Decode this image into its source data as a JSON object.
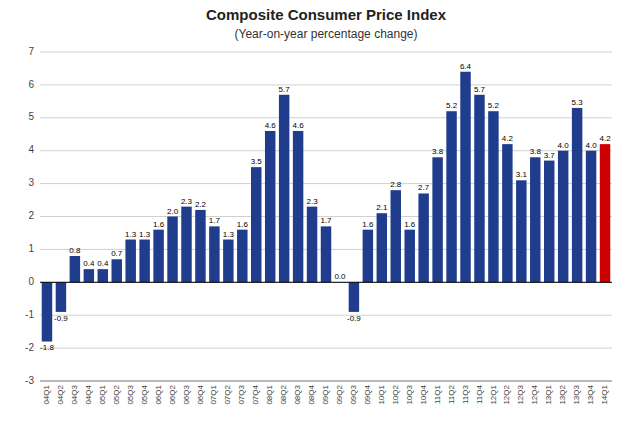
{
  "chart_data": {
    "type": "bar",
    "title": "Composite Consumer Price Index",
    "subtitle": "(Year-on-year percentage change)",
    "categories": [
      "04Q1",
      "04Q2",
      "04Q3",
      "04Q4",
      "05Q1",
      "05Q2",
      "05Q3",
      "05Q4",
      "06Q1",
      "06Q2",
      "06Q3",
      "06Q4",
      "07Q1",
      "07Q2",
      "07Q3",
      "07Q4",
      "08Q1",
      "08Q2",
      "08Q3",
      "08Q4",
      "09Q1",
      "09Q2",
      "09Q3",
      "09Q4",
      "10Q1",
      "10Q2",
      "10Q3",
      "10Q4",
      "11Q1",
      "11Q2",
      "11Q3",
      "11Q4",
      "12Q1",
      "12Q2",
      "12Q3",
      "12Q4",
      "13Q1",
      "13Q2",
      "13Q3",
      "13Q4",
      "14Q1"
    ],
    "values": [
      -1.8,
      -0.9,
      0.8,
      0.4,
      0.4,
      0.7,
      1.3,
      1.3,
      1.6,
      2.0,
      2.3,
      2.2,
      1.7,
      1.3,
      1.6,
      3.5,
      4.6,
      5.7,
      4.6,
      2.3,
      1.7,
      0.0,
      -0.9,
      1.6,
      2.1,
      2.8,
      1.6,
      2.7,
      3.8,
      5.2,
      6.4,
      5.7,
      5.2,
      4.2,
      3.1,
      3.8,
      3.7,
      4.0,
      5.3,
      4.0,
      4.2
    ],
    "value_labels": [
      "-1.8",
      "-0.9",
      "0.8",
      "0.4",
      "0.4",
      "0.7",
      "1.3",
      "1.3",
      "1.6",
      "2.0",
      "2.3",
      "2.2",
      "1.7",
      "1.3",
      "1.6",
      "3.5",
      "4.6",
      "5.7",
      "4.6",
      "2.3",
      "1.7",
      "0.0",
      "-0.9",
      "1.6",
      "2.1",
      "2.8",
      "1.6",
      "2.7",
      "3.8",
      "5.2",
      "6.4",
      "5.7",
      "5.2",
      "4.2",
      "3.1",
      "3.8",
      "3.7",
      "4.0",
      "5.3",
      "4.0",
      "4.2"
    ],
    "colors": [
      "#1f3d8c",
      "#1f3d8c",
      "#1f3d8c",
      "#1f3d8c",
      "#1f3d8c",
      "#1f3d8c",
      "#1f3d8c",
      "#1f3d8c",
      "#1f3d8c",
      "#1f3d8c",
      "#1f3d8c",
      "#1f3d8c",
      "#1f3d8c",
      "#1f3d8c",
      "#1f3d8c",
      "#1f3d8c",
      "#1f3d8c",
      "#1f3d8c",
      "#1f3d8c",
      "#1f3d8c",
      "#1f3d8c",
      "#1f3d8c",
      "#1f3d8c",
      "#1f3d8c",
      "#1f3d8c",
      "#1f3d8c",
      "#1f3d8c",
      "#1f3d8c",
      "#1f3d8c",
      "#1f3d8c",
      "#1f3d8c",
      "#1f3d8c",
      "#1f3d8c",
      "#1f3d8c",
      "#1f3d8c",
      "#1f3d8c",
      "#1f3d8c",
      "#1f3d8c",
      "#1f3d8c",
      "#1f3d8c",
      "#cc0000"
    ],
    "ylim": [
      -3,
      7
    ],
    "yticks": [
      -3,
      -2,
      -1,
      0,
      1,
      2,
      3,
      4,
      5,
      6,
      7
    ],
    "grid": true,
    "data_labels": true
  }
}
